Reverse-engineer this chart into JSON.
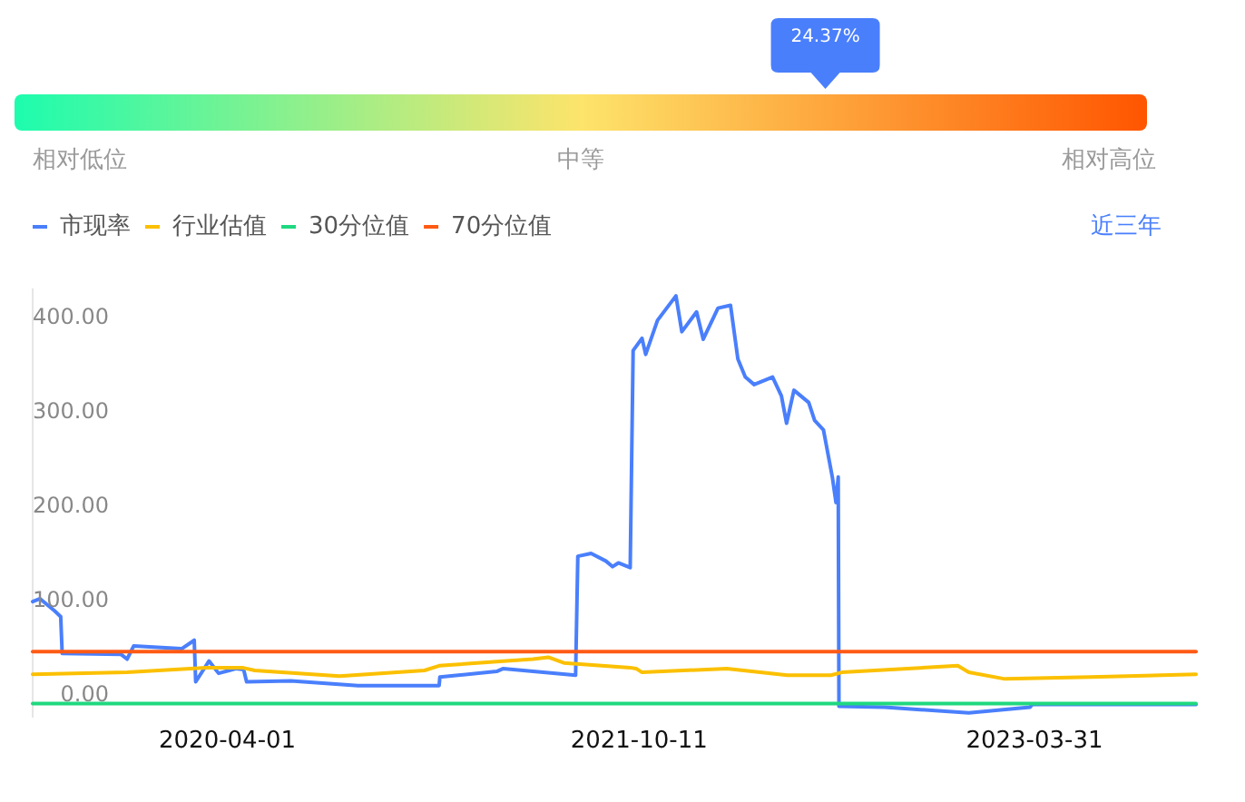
{
  "chart_data": [
    {
      "type": "other",
      "categories": [
        "相对低位",
        "中等",
        "相对高位"
      ],
      "colors": [
        "#1dfcae",
        "#fde46b",
        "#ff5500"
      ],
      "annotations": [
        "24.37%"
      ]
    },
    {
      "type": "line",
      "legend": "top left",
      "annotations": [
        "近三年"
      ],
      "xlim": [
        "2019-07-12",
        "2023-11-05"
      ],
      "xticks": [
        "2020-04-01",
        "2021-10-11",
        "2023-03-31"
      ],
      "ylim": [
        -25,
        430
      ],
      "yticks": [
        {
          "value": 0,
          "label": "0.00"
        },
        {
          "value": 100,
          "label": "100.00"
        },
        {
          "value": 200,
          "label": "200.00"
        },
        {
          "value": 300,
          "label": "300.00"
        },
        {
          "value": 400,
          "label": "400.00"
        }
      ],
      "series": [
        {
          "name": "市现率",
          "color": "#4a7ffc",
          "x": [
            "2019-07-12",
            "2019-07-22",
            "2019-08-11",
            "2019-08-19",
            "2019-08-21",
            "2019-11-09",
            "2019-11-17",
            "2019-11-26",
            "2020-01-30",
            "2020-02-16",
            "2020-02-18",
            "2020-03-07",
            "2020-03-20",
            "2020-04-13",
            "2020-04-23",
            "2020-04-27",
            "2020-06-26",
            "2020-09-25",
            "2021-01-13",
            "2021-01-14",
            "2021-04-01",
            "2021-04-10",
            "2021-07-17",
            "2021-07-20",
            "2021-08-07",
            "2021-08-27",
            "2021-09-05",
            "2021-09-13",
            "2021-09-29",
            "2021-10-03",
            "2021-10-15",
            "2021-10-20",
            "2021-11-05",
            "2021-11-30",
            "2021-12-08",
            "2021-12-28",
            "2022-01-06",
            "2022-01-26",
            "2022-02-12",
            "2022-02-22",
            "2022-03-04",
            "2022-03-16",
            "2022-04-10",
            "2022-04-22",
            "2022-04-29",
            "2022-05-09",
            "2022-05-29",
            "2022-06-06",
            "2022-06-18",
            "2022-06-30",
            "2022-07-05",
            "2022-07-08",
            "2022-07-09",
            "2022-09-09",
            "2023-01-01",
            "2023-03-25",
            "2023-03-28",
            "2023-11-05"
          ],
          "values": [
            98,
            101,
            88,
            82,
            43,
            42,
            37,
            51,
            48,
            57,
            13,
            35,
            22,
            27,
            26,
            13,
            14,
            9,
            9,
            18,
            24,
            27,
            20,
            146,
            149,
            141,
            135,
            139,
            134,
            364,
            377,
            360,
            396,
            422,
            384,
            405,
            376,
            409,
            412,
            355,
            336,
            328,
            336,
            316,
            287,
            322,
            309,
            290,
            280,
            230,
            203,
            230,
            -13,
            -14,
            -20,
            -14,
            -11,
            -11
          ]
        },
        {
          "name": "行业估值",
          "color": "#fbc000",
          "x": [
            "2019-07-12",
            "2019-11-17",
            "2020-03-03",
            "2020-04-21",
            "2020-05-08",
            "2020-08-31",
            "2020-12-24",
            "2021-01-13",
            "2021-05-20",
            "2021-06-10",
            "2021-07-01",
            "2021-09-29",
            "2021-10-07",
            "2021-10-15",
            "2022-02-07",
            "2022-04-30",
            "2022-06-28",
            "2022-07-13",
            "2022-12-17",
            "2023-01-01",
            "2023-02-19",
            "2023-06-15",
            "2023-11-05"
          ],
          "values": [
            21,
            23,
            28,
            28,
            25,
            19,
            25,
            30,
            37,
            39,
            33,
            28,
            27,
            23,
            27,
            20,
            20,
            23,
            30,
            23,
            16,
            18,
            21
          ]
        },
        {
          "name": "30分位值",
          "color": "#1fd87f",
          "x": [
            "2019-07-12",
            "2023-11-05"
          ],
          "values": [
            -10,
            -10
          ]
        },
        {
          "name": "70分位值",
          "color": "#ff5a14",
          "x": [
            "2019-07-12",
            "2023-11-05"
          ],
          "values": [
            45,
            45
          ]
        }
      ]
    }
  ]
}
